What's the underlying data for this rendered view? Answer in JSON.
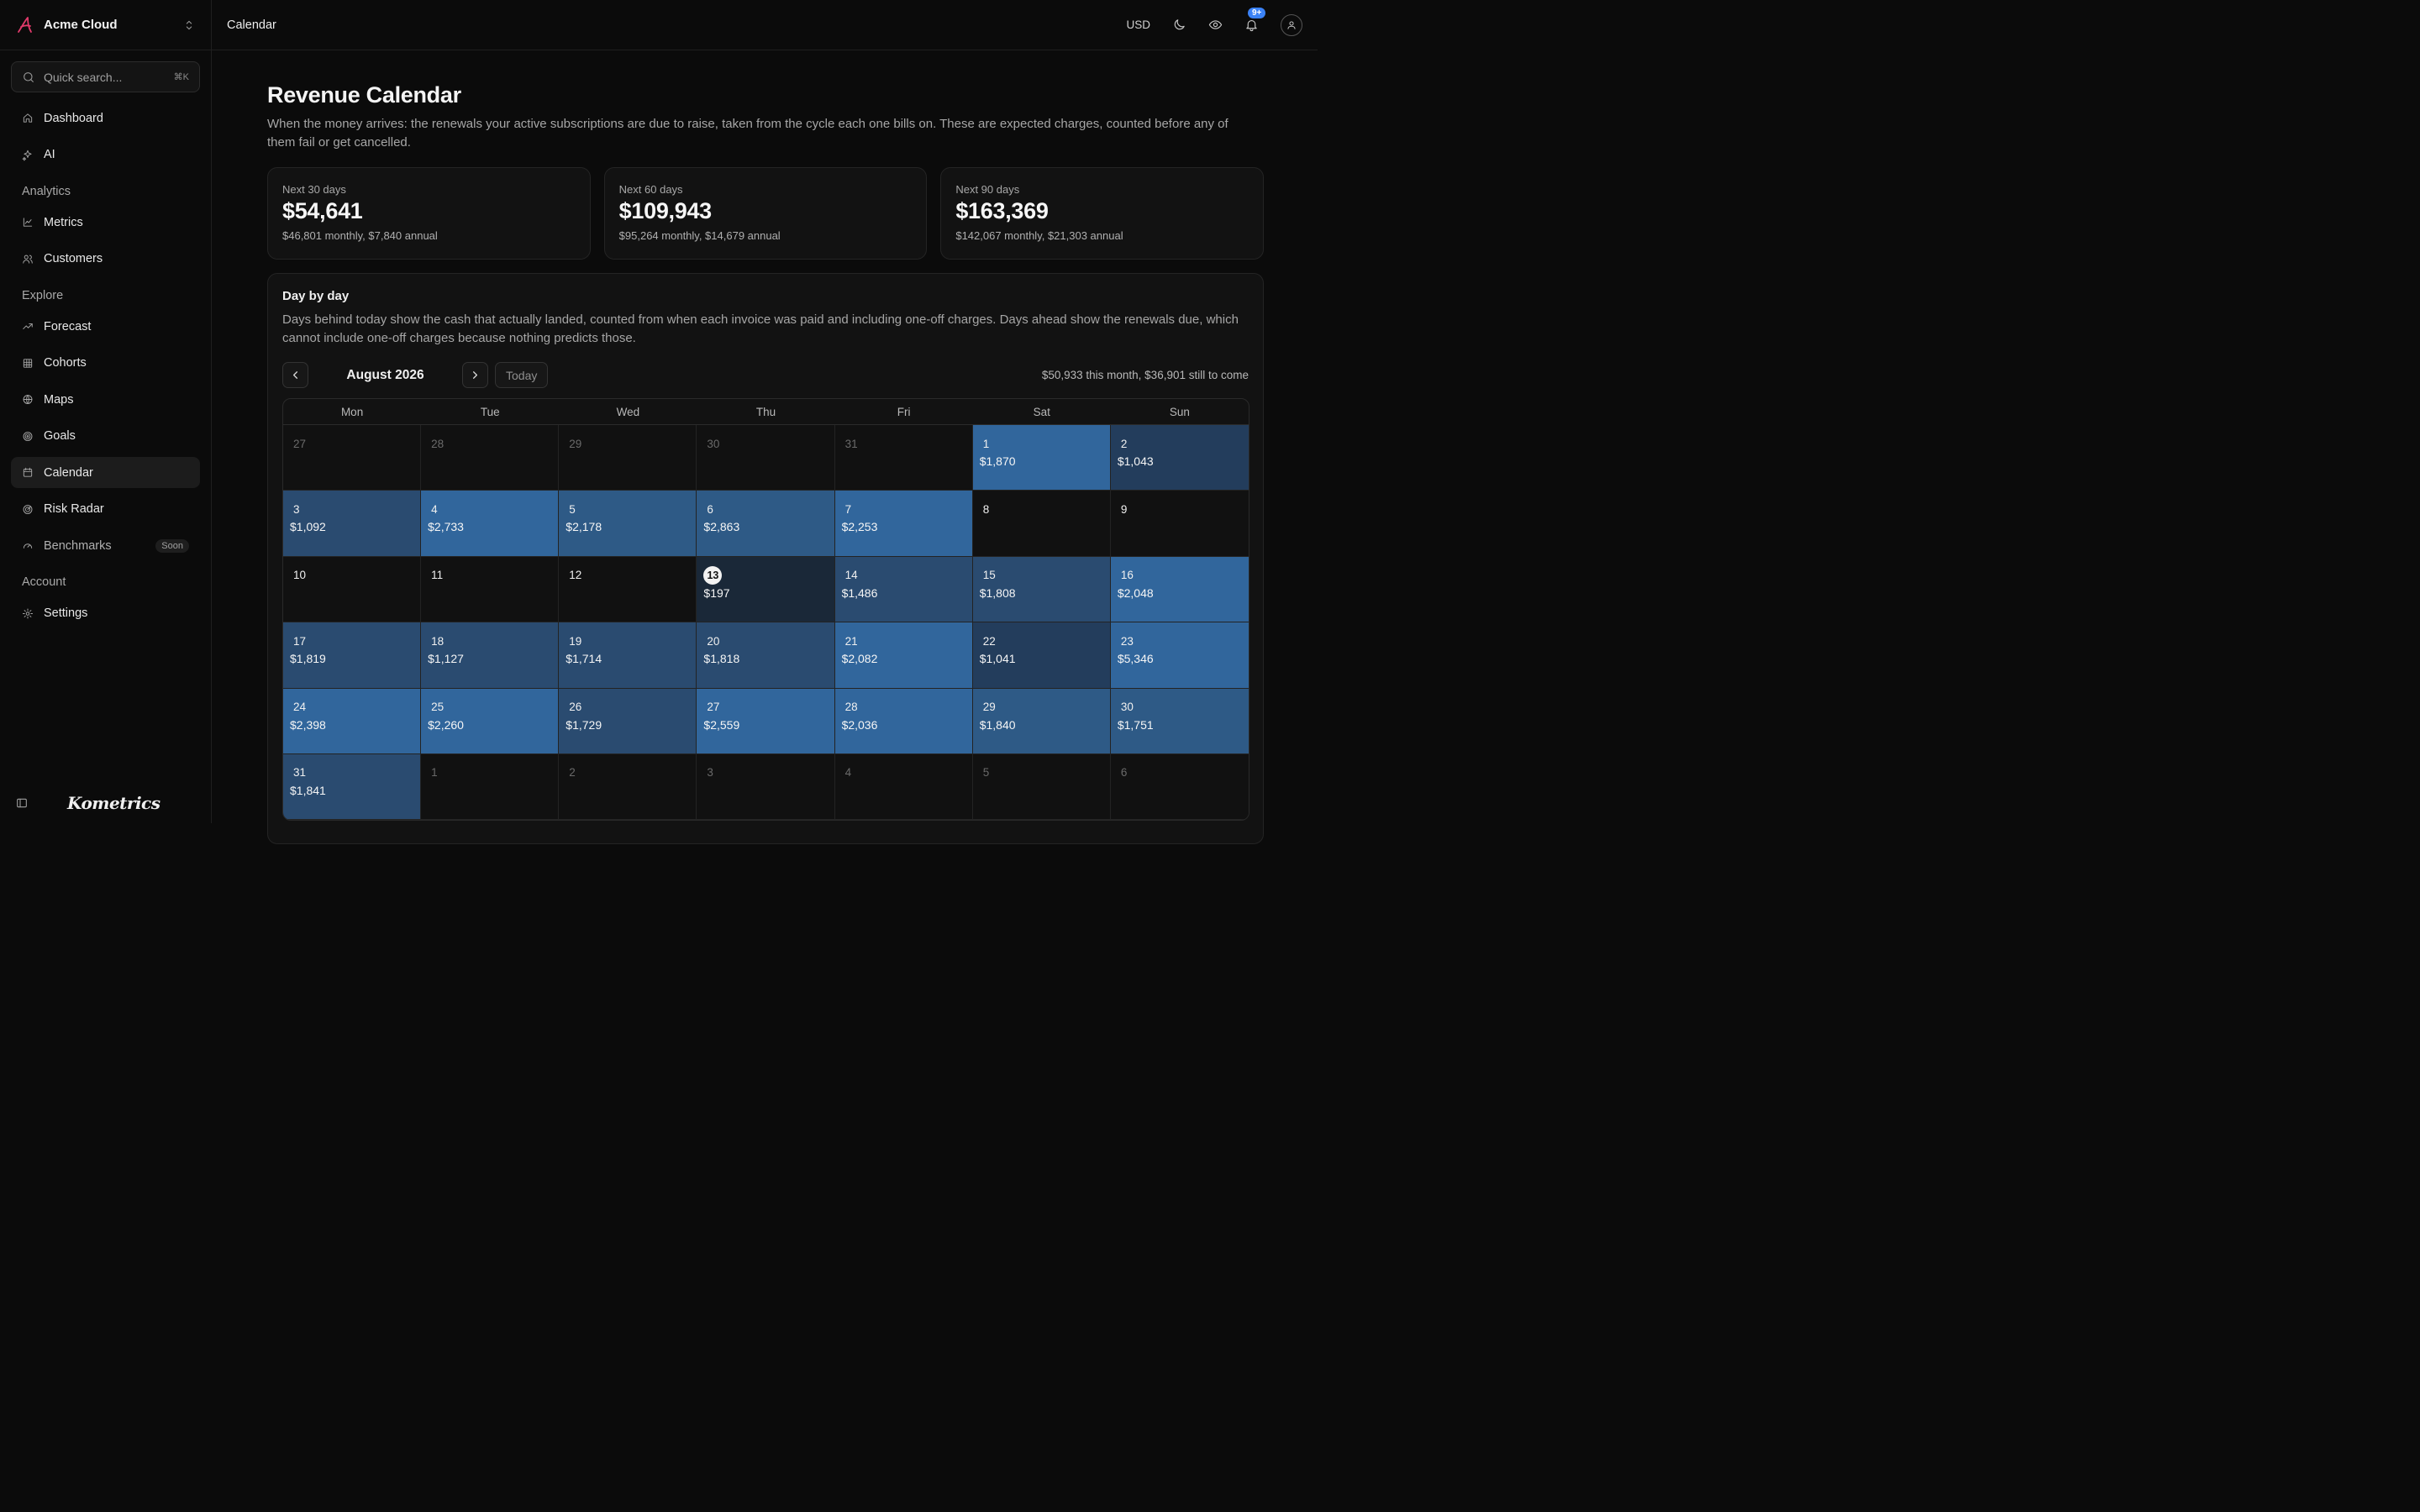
{
  "app": {
    "name": "Acme Cloud",
    "search_placeholder": "Quick search...",
    "search_shortcut": "⌘K",
    "wordmark": "Kometrics"
  },
  "sidebar": {
    "items_top": [
      {
        "label": "Dashboard",
        "icon": "home-icon"
      },
      {
        "label": "AI",
        "icon": "sparkles-icon"
      }
    ],
    "analytics_label": "Analytics",
    "analytics": [
      {
        "label": "Metrics",
        "icon": "line-chart-icon"
      },
      {
        "label": "Customers",
        "icon": "users-icon"
      }
    ],
    "explore_label": "Explore",
    "explore": [
      {
        "label": "Forecast",
        "icon": "trending-up-icon"
      },
      {
        "label": "Cohorts",
        "icon": "grid-icon"
      },
      {
        "label": "Maps",
        "icon": "globe-icon"
      },
      {
        "label": "Goals",
        "icon": "target-icon"
      },
      {
        "label": "Calendar",
        "icon": "calendar-icon"
      },
      {
        "label": "Risk Radar",
        "icon": "radar-icon"
      },
      {
        "label": "Benchmarks",
        "icon": "gauge-icon",
        "badge": "Soon"
      }
    ],
    "account_label": "Account",
    "account": [
      {
        "label": "Settings",
        "icon": "gear-icon"
      }
    ]
  },
  "topbar": {
    "breadcrumb": "Calendar",
    "currency": "USD",
    "notification_badge": "9+"
  },
  "page": {
    "title": "Revenue Calendar",
    "description": "When the money arrives: the renewals your active subscriptions are due to raise, taken from the cycle each one bills on. These are expected charges, counted before any of them fail or get cancelled."
  },
  "stats": [
    {
      "label": "Next 30 days",
      "value": "$54,641",
      "sub": "$46,801 monthly, $7,840 annual"
    },
    {
      "label": "Next 60 days",
      "value": "$109,943",
      "sub": "$95,264 monthly, $14,679 annual"
    },
    {
      "label": "Next 90 days",
      "value": "$163,369",
      "sub": "$142,067 monthly, $21,303 annual"
    }
  ],
  "panel": {
    "title": "Day by day",
    "description": "Days behind today show the cash that actually landed, counted from when each invoice was paid and including one-off charges. Days ahead show the renewals due, which cannot include one-off charges because nothing predicts those.",
    "month_label": "August 2026",
    "today_label": "Today",
    "summary": "$50,933 this month, $36,901 still to come"
  },
  "calendar": {
    "weekdays": [
      "Mon",
      "Tue",
      "Wed",
      "Thu",
      "Fri",
      "Sat",
      "Sun"
    ],
    "today": 13,
    "weeks": [
      [
        {
          "d": "27",
          "out": true
        },
        {
          "d": "28",
          "out": true
        },
        {
          "d": "29",
          "out": true
        },
        {
          "d": "30",
          "out": true
        },
        {
          "d": "31",
          "out": true
        },
        {
          "d": "1",
          "amt": "$1,870",
          "lvl": 5
        },
        {
          "d": "2",
          "amt": "$1,043",
          "lvl": 2
        }
      ],
      [
        {
          "d": "3",
          "amt": "$1,092",
          "lvl": 3
        },
        {
          "d": "4",
          "amt": "$2,733",
          "lvl": 5
        },
        {
          "d": "5",
          "amt": "$2,178",
          "lvl": 4
        },
        {
          "d": "6",
          "amt": "$2,863",
          "lvl": 4
        },
        {
          "d": "7",
          "amt": "$2,253",
          "lvl": 5
        },
        {
          "d": "8"
        },
        {
          "d": "9"
        }
      ],
      [
        {
          "d": "10"
        },
        {
          "d": "11"
        },
        {
          "d": "12"
        },
        {
          "d": "13",
          "amt": "$197",
          "lvl": 1,
          "today": true
        },
        {
          "d": "14",
          "amt": "$1,486",
          "lvl": 3
        },
        {
          "d": "15",
          "amt": "$1,808",
          "lvl": 3
        },
        {
          "d": "16",
          "amt": "$2,048",
          "lvl": 5
        }
      ],
      [
        {
          "d": "17",
          "amt": "$1,819",
          "lvl": 3
        },
        {
          "d": "18",
          "amt": "$1,127",
          "lvl": 3
        },
        {
          "d": "19",
          "amt": "$1,714",
          "lvl": 3
        },
        {
          "d": "20",
          "amt": "$1,818",
          "lvl": 3
        },
        {
          "d": "21",
          "amt": "$2,082",
          "lvl": 5
        },
        {
          "d": "22",
          "amt": "$1,041",
          "lvl": 2
        },
        {
          "d": "23",
          "amt": "$5,346",
          "lvl": 5
        }
      ],
      [
        {
          "d": "24",
          "amt": "$2,398",
          "lvl": 5
        },
        {
          "d": "25",
          "amt": "$2,260",
          "lvl": 5
        },
        {
          "d": "26",
          "amt": "$1,729",
          "lvl": 3
        },
        {
          "d": "27",
          "amt": "$2,559",
          "lvl": 5
        },
        {
          "d": "28",
          "amt": "$2,036",
          "lvl": 5
        },
        {
          "d": "29",
          "amt": "$1,840",
          "lvl": 4
        },
        {
          "d": "30",
          "amt": "$1,751",
          "lvl": 4
        }
      ],
      [
        {
          "d": "31",
          "amt": "$1,841",
          "lvl": 3
        },
        {
          "d": "1",
          "out": true
        },
        {
          "d": "2",
          "out": true
        },
        {
          "d": "3",
          "out": true
        },
        {
          "d": "4",
          "out": true
        },
        {
          "d": "5",
          "out": true
        },
        {
          "d": "6",
          "out": true
        }
      ]
    ]
  },
  "colors": {
    "accent": "#3b82f6",
    "brand": "#e23a6b",
    "heat_levels": [
      "#1a2838",
      "#233d5c",
      "#2a4b70",
      "#2e5a86",
      "#31669c"
    ]
  }
}
